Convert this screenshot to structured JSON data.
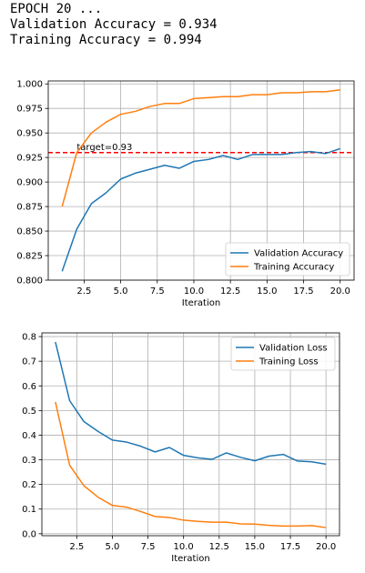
{
  "log": {
    "line1": "EPOCH 20 ...",
    "line2": "Validation Accuracy = 0.934",
    "line3": "Training Accuracy = 0.994"
  },
  "colors": {
    "validation": "#1f77b4",
    "training": "#ff7f0e",
    "target": "#ff0000",
    "grid": "#b0b0b0"
  },
  "chart_data": [
    {
      "type": "line",
      "title": "",
      "xlabel": "Iteration",
      "ylabel": "",
      "x": [
        1,
        2,
        3,
        4,
        5,
        6,
        7,
        8,
        9,
        10,
        11,
        12,
        13,
        14,
        15,
        16,
        17,
        18,
        19,
        20
      ],
      "xlim": [
        0.05,
        20.95
      ],
      "ylim": [
        0.8,
        1.003
      ],
      "xticks": [
        2.5,
        5.0,
        7.5,
        10.0,
        12.5,
        15.0,
        17.5,
        20.0
      ],
      "xtick_labels": [
        "2.5",
        "5.0",
        "7.5",
        "10.0",
        "12.5",
        "15.0",
        "17.5",
        "20.0"
      ],
      "yticks": [
        0.8,
        0.825,
        0.85,
        0.875,
        0.9,
        0.925,
        0.95,
        0.975,
        1.0
      ],
      "ytick_labels": [
        "0.800",
        "0.825",
        "0.850",
        "0.875",
        "0.900",
        "0.925",
        "0.950",
        "0.975",
        "1.000"
      ],
      "grid": true,
      "legend": "bottom-right",
      "series": [
        {
          "name": "Validation Accuracy",
          "color": "#1f77b4",
          "values": [
            0.809,
            0.852,
            0.878,
            0.889,
            0.903,
            0.909,
            0.913,
            0.917,
            0.914,
            0.921,
            0.923,
            0.927,
            0.923,
            0.928,
            0.928,
            0.928,
            0.93,
            0.931,
            0.929,
            0.934
          ]
        },
        {
          "name": "Training Accuracy",
          "color": "#ff7f0e",
          "values": [
            0.875,
            0.93,
            0.95,
            0.961,
            0.969,
            0.972,
            0.977,
            0.98,
            0.98,
            0.985,
            0.986,
            0.987,
            0.987,
            0.989,
            0.989,
            0.991,
            0.991,
            0.992,
            0.992,
            0.994
          ]
        }
      ],
      "target": {
        "value": 0.93,
        "label": "target=0.93",
        "color": "#ff0000"
      }
    },
    {
      "type": "line",
      "title": "",
      "xlabel": "Iteration",
      "ylabel": "",
      "x": [
        1,
        2,
        3,
        4,
        5,
        6,
        7,
        8,
        9,
        10,
        11,
        12,
        13,
        14,
        15,
        16,
        17,
        18,
        19,
        20
      ],
      "xlim": [
        0.05,
        20.95
      ],
      "ylim": [
        -0.008,
        0.815
      ],
      "xticks": [
        2.5,
        5.0,
        7.5,
        10.0,
        12.5,
        15.0,
        17.5,
        20.0
      ],
      "xtick_labels": [
        "2.5",
        "5.0",
        "7.5",
        "10.0",
        "12.5",
        "15.0",
        "17.5",
        "20.0"
      ],
      "yticks": [
        0.0,
        0.1,
        0.2,
        0.3,
        0.4,
        0.5,
        0.6,
        0.7,
        0.8
      ],
      "ytick_labels": [
        "0.0",
        "0.1",
        "0.2",
        "0.3",
        "0.4",
        "0.5",
        "0.6",
        "0.7",
        "0.8"
      ],
      "grid": true,
      "legend": "top-right",
      "series": [
        {
          "name": "Validation Loss",
          "color": "#1f77b4",
          "values": [
            0.778,
            0.54,
            0.455,
            0.415,
            0.38,
            0.372,
            0.355,
            0.332,
            0.35,
            0.318,
            0.308,
            0.302,
            0.328,
            0.31,
            0.296,
            0.315,
            0.322,
            0.295,
            0.292,
            0.282
          ]
        },
        {
          "name": "Training Loss",
          "color": "#ff7f0e",
          "values": [
            0.535,
            0.278,
            0.195,
            0.148,
            0.115,
            0.108,
            0.09,
            0.07,
            0.066,
            0.055,
            0.05,
            0.047,
            0.047,
            0.04,
            0.039,
            0.034,
            0.031,
            0.031,
            0.033,
            0.025
          ]
        }
      ]
    }
  ]
}
